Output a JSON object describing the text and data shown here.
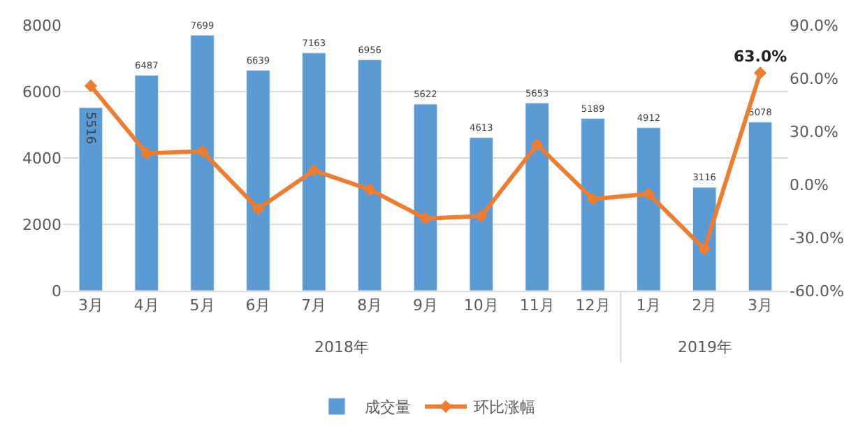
{
  "chart_data": {
    "type": "bar",
    "categories": [
      "3月",
      "4月",
      "5月",
      "6月",
      "7月",
      "8月",
      "9月",
      "10月",
      "11月",
      "12月",
      "1月",
      "2月",
      "3月"
    ],
    "series": [
      {
        "name": "成交量",
        "color": "#5b9bd5",
        "values": [
          5516,
          6487,
          7699,
          6639,
          7163,
          6956,
          5622,
          4613,
          5653,
          5189,
          4912,
          3116,
          5078
        ],
        "value_labels": [
          "5516",
          "6487",
          "7699",
          "6639",
          "7163",
          "6956",
          "5622",
          "4613",
          "5653",
          "5189",
          "4912",
          "3116",
          "5078"
        ]
      },
      {
        "name": "环比涨幅",
        "type": "line",
        "axis": "y2",
        "color": "#ed7d31",
        "marker": "diamond",
        "values": [
          55.7,
          17.6,
          18.7,
          -13.8,
          7.9,
          -2.9,
          -19.2,
          -17.9,
          22.5,
          -8.2,
          -5.3,
          -36.6,
          63.0
        ],
        "value_labels": [
          null,
          null,
          null,
          null,
          null,
          null,
          null,
          null,
          null,
          null,
          null,
          null,
          "63.0%"
        ]
      }
    ],
    "annotations": [
      "2018年",
      "2019年"
    ],
    "ylim": [
      0,
      8000
    ],
    "yticks": [
      0,
      2000,
      4000,
      6000,
      8000
    ],
    "y2lim": [
      -60,
      90
    ],
    "y2ticks": [
      {
        "value": -60,
        "label": "-60.0%"
      },
      {
        "value": -30,
        "label": "-30.0%"
      },
      {
        "value": 0,
        "label": "0.0%"
      },
      {
        "value": 30,
        "label": "30.0%"
      },
      {
        "value": 60,
        "label": "60.0%"
      },
      {
        "value": 90,
        "label": "90.0%"
      }
    ],
    "grid": "y",
    "legend": "bottom"
  }
}
